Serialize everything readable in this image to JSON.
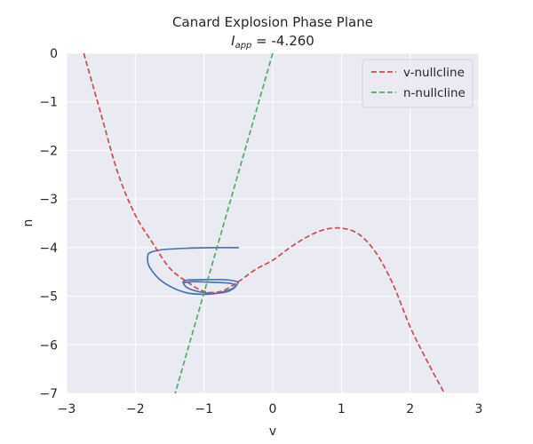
{
  "chart_data": {
    "type": "line",
    "title": "Canard Explosion Phase Plane",
    "subtitle_var": "I",
    "subtitle_sub": "app",
    "subtitle_value": " = -4.260",
    "xlabel": "v",
    "ylabel": "n",
    "xlim": [
      -3,
      3
    ],
    "ylim": [
      -7,
      0
    ],
    "xticks": [
      -3,
      -2,
      -1,
      0,
      1,
      2,
      3
    ],
    "yticks": [
      0,
      -1,
      -2,
      -3,
      -4,
      -5,
      -6,
      -7
    ],
    "xtick_labels": [
      "−3",
      "−2",
      "−1",
      "0",
      "1",
      "2",
      "3"
    ],
    "ytick_labels": [
      "0",
      "−1",
      "−2",
      "−3",
      "−4",
      "−5",
      "−6",
      "−7"
    ],
    "grid": true,
    "legend_position": "top-right",
    "series": [
      {
        "name": "v-nullcline",
        "style": "dashed",
        "color": "#c44e52",
        "x": [
          -2.75,
          -2.5,
          -2.25,
          -2.0,
          -1.75,
          -1.5,
          -1.25,
          -1.0,
          -0.75,
          -0.5,
          -0.25,
          0.0,
          0.25,
          0.5,
          0.75,
          1.0,
          1.25,
          1.5,
          1.75,
          2.0,
          2.25,
          2.5
        ],
        "y": [
          0.0,
          -1.25,
          -2.48,
          -3.33,
          -3.9,
          -4.42,
          -4.7,
          -4.9,
          -4.9,
          -4.7,
          -4.45,
          -4.26,
          -4.0,
          -3.78,
          -3.63,
          -3.6,
          -3.72,
          -4.1,
          -4.75,
          -5.63,
          -6.34,
          -7.0
        ]
      },
      {
        "name": "n-nullcline",
        "style": "dashed",
        "color": "#55a868",
        "x": [
          0.0,
          -1.42
        ],
        "y": [
          0.0,
          -7.0
        ]
      },
      {
        "name": "",
        "style": "solid",
        "color": "#4c72b0",
        "x": [
          -0.5,
          -0.8,
          -1.2,
          -1.6,
          -1.78,
          -1.82,
          -1.8,
          -1.65,
          -1.45,
          -1.25,
          -1.05,
          -0.85,
          -0.65,
          -0.55,
          -0.6,
          -0.75,
          -0.95,
          -1.15,
          -1.3,
          -1.25,
          -1.0,
          -0.7,
          -0.52,
          -0.52,
          -0.58,
          -0.7,
          -0.9,
          -1.1,
          -1.25,
          -1.3
        ],
        "y": [
          -4.0,
          -4.0,
          -4.01,
          -4.04,
          -4.1,
          -4.18,
          -4.38,
          -4.65,
          -4.83,
          -4.93,
          -4.96,
          -4.95,
          -4.88,
          -4.8,
          -4.74,
          -4.72,
          -4.71,
          -4.7,
          -4.72,
          -4.67,
          -4.66,
          -4.66,
          -4.7,
          -4.76,
          -4.85,
          -4.92,
          -4.94,
          -4.9,
          -4.82,
          -4.74
        ]
      }
    ]
  },
  "colors": {
    "plot_background": "#eaeaf2",
    "grid": "#ffffff",
    "text": "#262626"
  }
}
